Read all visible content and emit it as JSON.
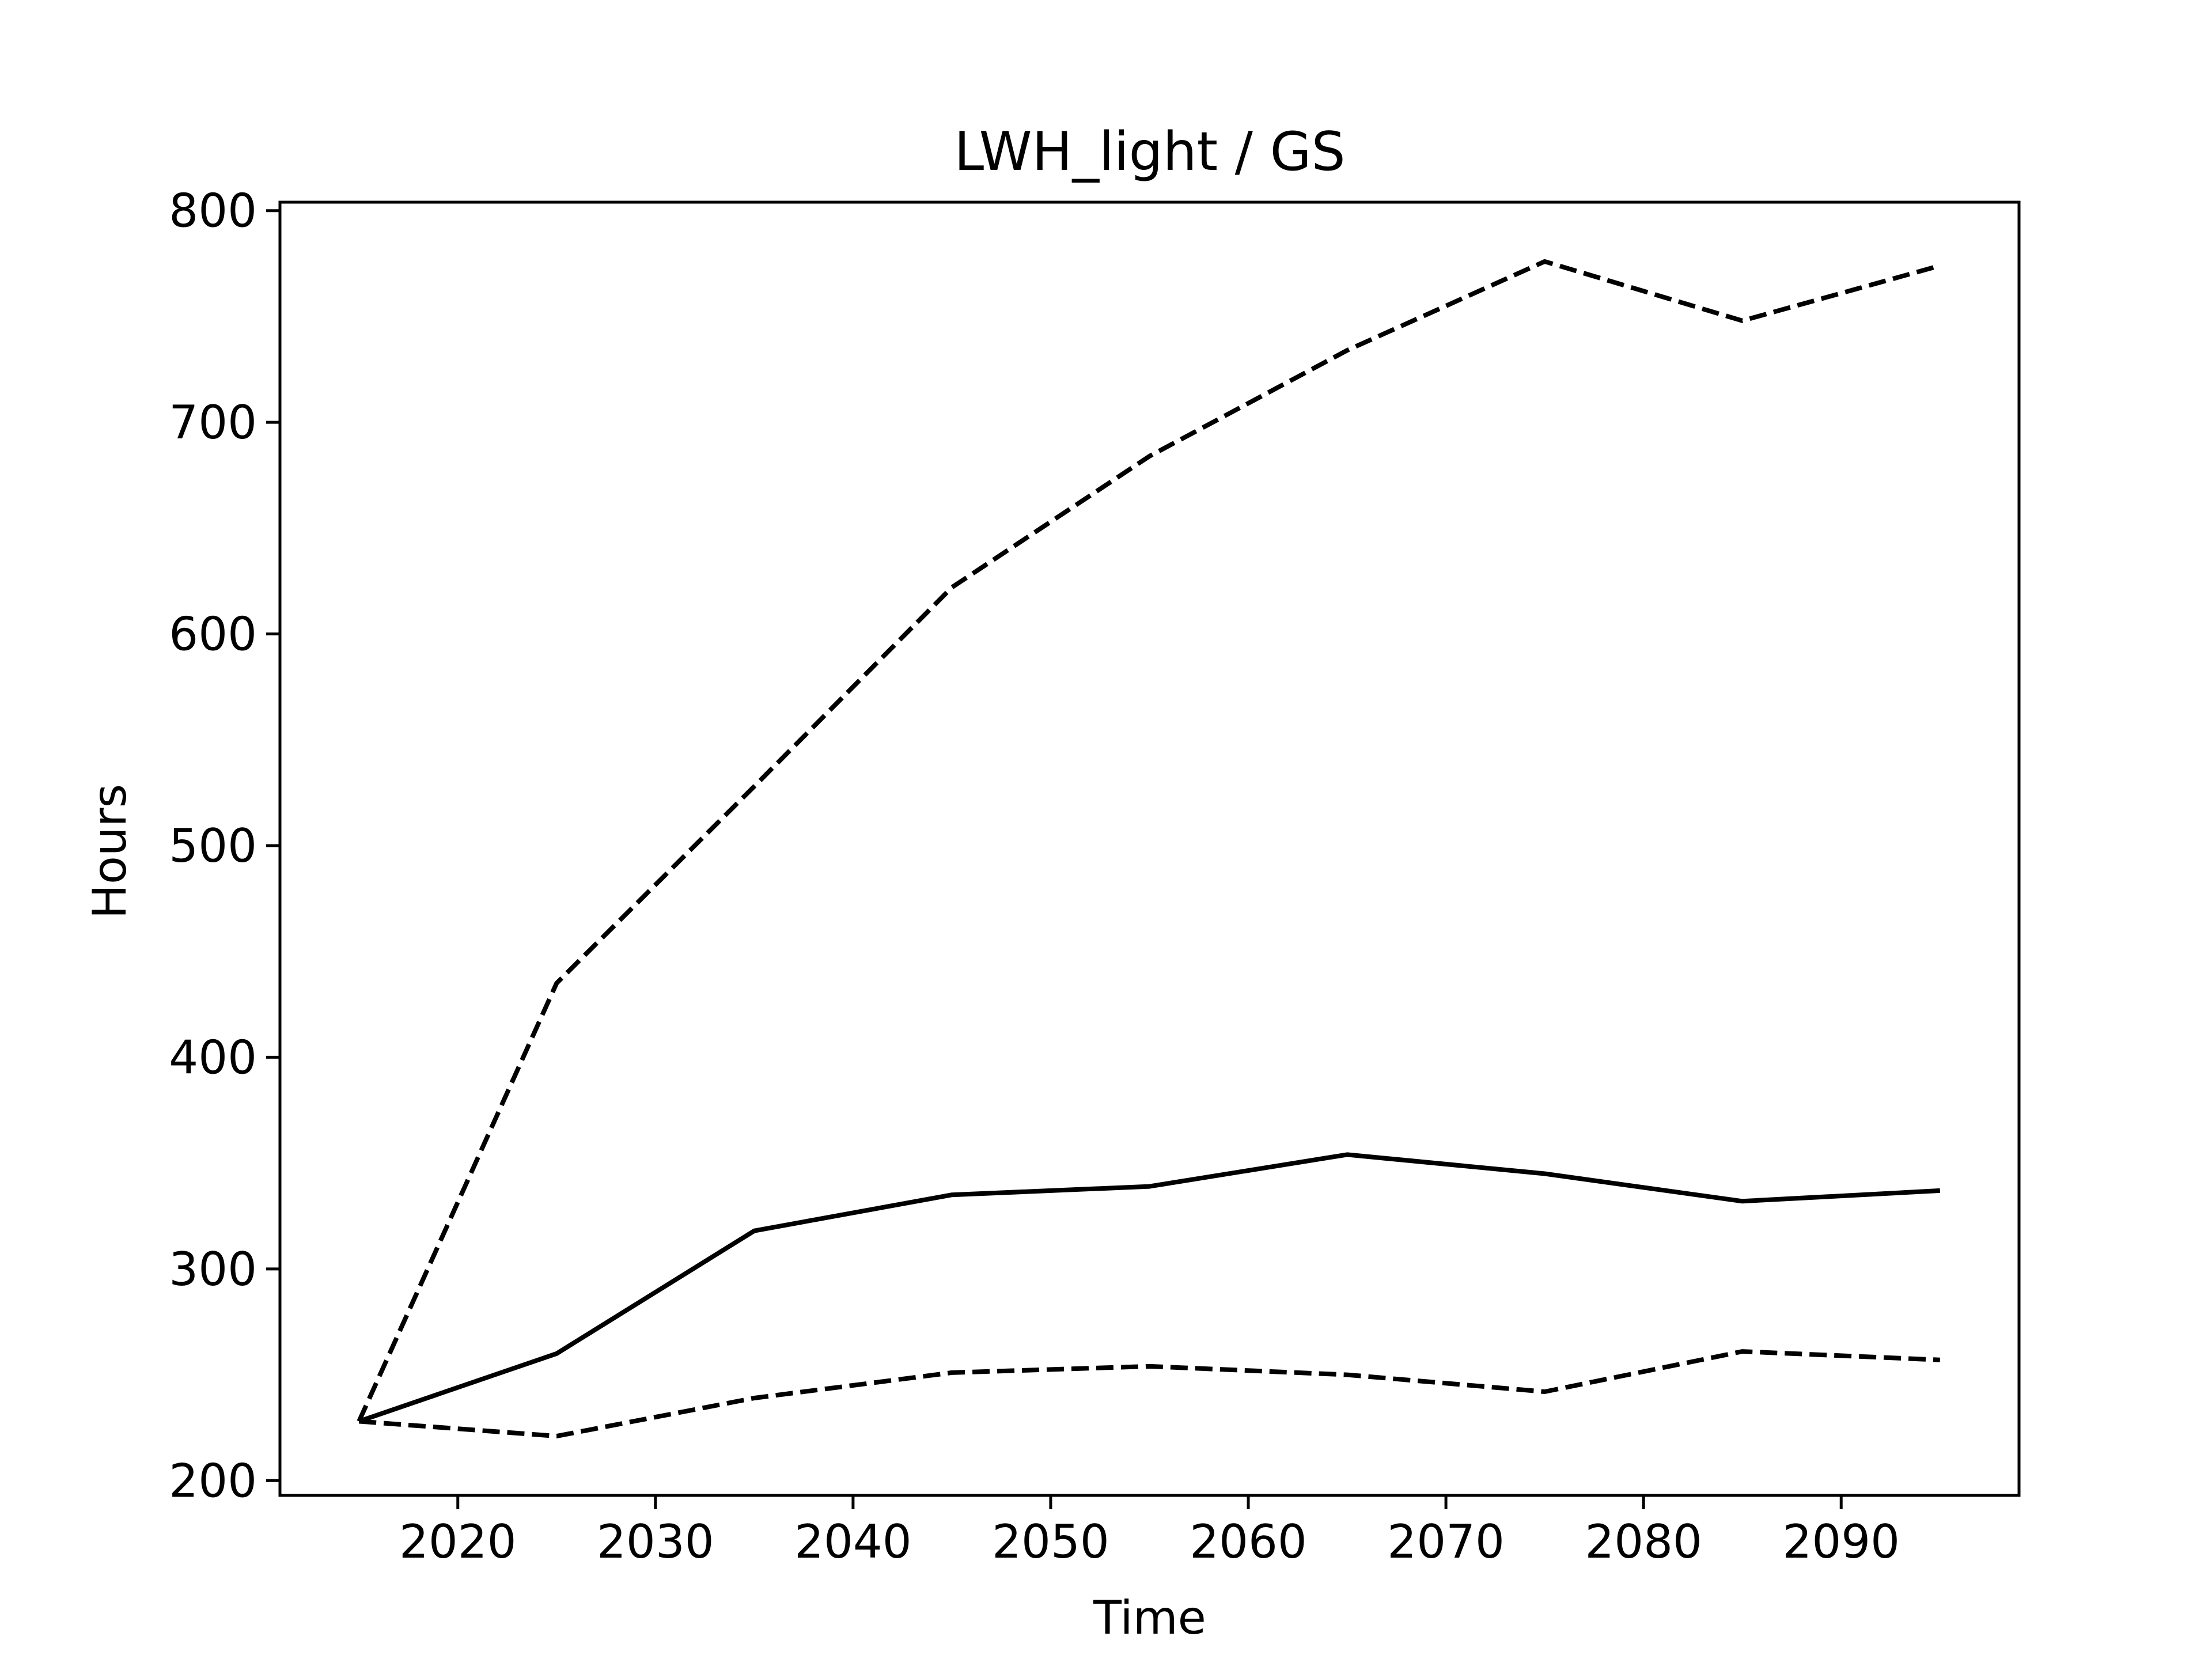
{
  "chart_data": {
    "type": "line",
    "title": "LWH_light / GS",
    "xlabel": "Time",
    "ylabel": "Hours",
    "xlim": [
      2011,
      2099
    ],
    "ylim": [
      193,
      804
    ],
    "xticks": [
      2020,
      2030,
      2040,
      2050,
      2060,
      2070,
      2080,
      2090
    ],
    "yticks": [
      200,
      300,
      400,
      500,
      600,
      700,
      800
    ],
    "x": [
      2015,
      2025,
      2035,
      2045,
      2055,
      2065,
      2075,
      2085,
      2095
    ],
    "grid": false,
    "legend": "none",
    "series": [
      {
        "style": "dashed",
        "color": "#000000",
        "values": [
          228,
          435,
          528,
          622,
          684,
          734,
          776,
          748,
          774
        ]
      },
      {
        "style": "solid",
        "color": "#000000",
        "values": [
          228,
          260,
          318,
          335,
          339,
          354,
          345,
          332,
          337
        ]
      },
      {
        "style": "dashed",
        "color": "#000000",
        "values": [
          228,
          221,
          239,
          251,
          254,
          250,
          242,
          261,
          257
        ]
      }
    ]
  }
}
